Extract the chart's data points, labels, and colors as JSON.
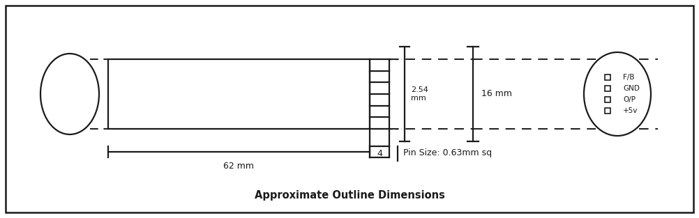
{
  "fig_width": 10.02,
  "fig_height": 3.13,
  "dpi": 100,
  "bg_color": "#ffffff",
  "line_color": "#1a1a1a",
  "title": "Approximate Outline Dimensions",
  "title_fontsize": 10.5,
  "label_62mm": "62 mm",
  "label_4": "4",
  "label_254mm": "2.54\nmm",
  "label_16mm": "16 mm",
  "label_pinsize": "Pin Size: 0.63mm sq",
  "label_fb": "F/B",
  "label_gnd": "GND",
  "label_op": "O/P",
  "label_5v": "+5v",
  "border_lw": 1.8,
  "diagram_lw": 1.6,
  "dash_lw": 1.4
}
